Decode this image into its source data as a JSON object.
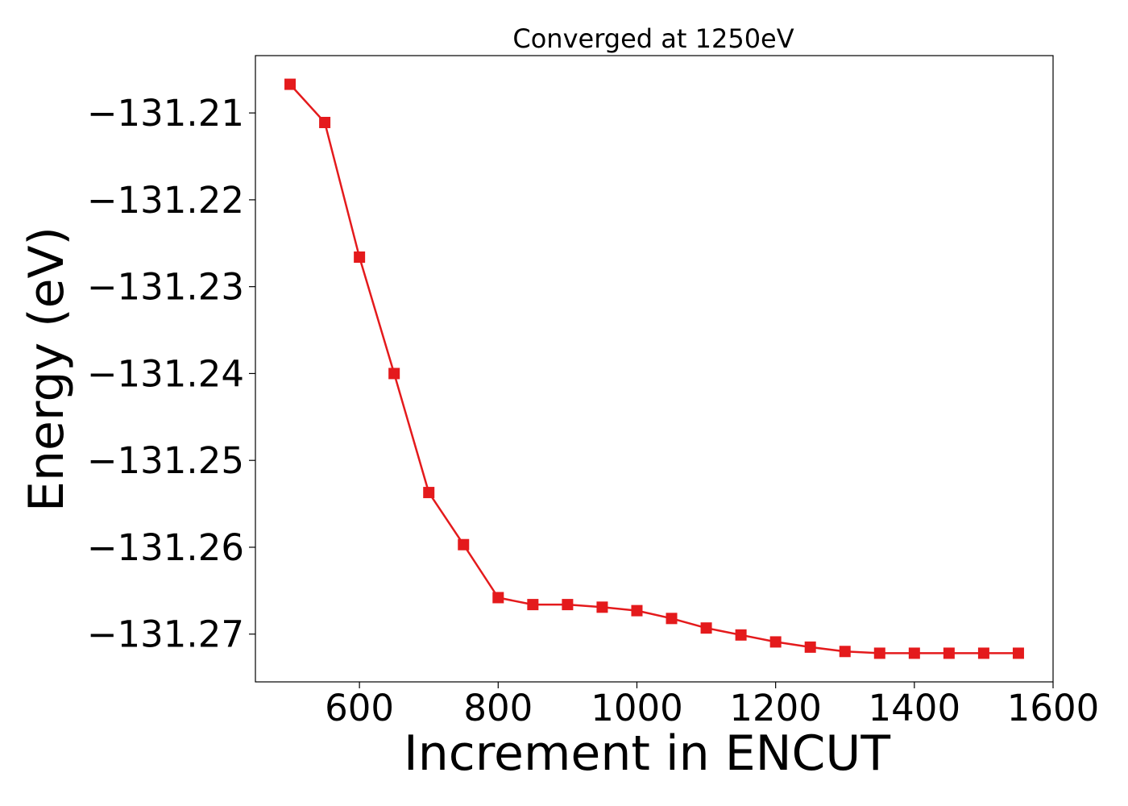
{
  "chart_data": {
    "type": "line",
    "title": "Converged at 1250eV",
    "xlabel": "Increment in ENCUT",
    "ylabel": "Energy (eV)",
    "xlim": [
      450,
      1600
    ],
    "ylim": [
      -131.2755,
      -131.2034
    ],
    "xticks": [
      600,
      800,
      1000,
      1200,
      1400,
      1600
    ],
    "xtick_labels": [
      "600",
      "800",
      "1000",
      "1200",
      "1400",
      "1600"
    ],
    "yticks": [
      -131.21,
      -131.22,
      -131.23,
      -131.24,
      -131.25,
      -131.26,
      -131.27
    ],
    "ytick_labels": [
      "−131.21",
      "−131.22",
      "−131.23",
      "−131.24",
      "−131.25",
      "−131.26",
      "−131.27"
    ],
    "grid": false,
    "series": [
      {
        "color": "#e41a1c",
        "marker": "square",
        "x": [
          500,
          550,
          600,
          650,
          700,
          750,
          800,
          850,
          900,
          950,
          1000,
          1050,
          1100,
          1150,
          1200,
          1250,
          1300,
          1350,
          1400,
          1450,
          1500,
          1550
        ],
        "y": [
          -131.2067,
          -131.2111,
          -131.2266,
          -131.24,
          -131.2537,
          -131.2597,
          -131.2658,
          -131.2666,
          -131.2666,
          -131.2669,
          -131.2673,
          -131.2682,
          -131.2693,
          -131.2701,
          -131.2709,
          -131.2715,
          -131.272,
          -131.2722,
          -131.2722,
          -131.2722,
          -131.2722,
          -131.2722
        ]
      }
    ]
  }
}
